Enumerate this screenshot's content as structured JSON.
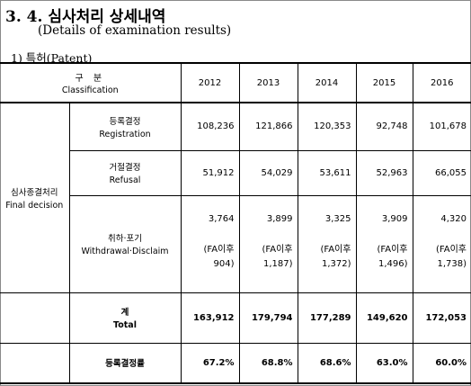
{
  "title": "3. 4. 심사처리 상세내역",
  "subtitle": "(Details of examination results)",
  "section": "1) 특허(Patent)",
  "table": {
    "header_ko": "구 분",
    "header_en": "Classification",
    "years": [
      "2012",
      "2013",
      "2014",
      "2015",
      "2016"
    ],
    "group_ko": "심사종결처리",
    "group_en": "Final decision",
    "registration": {
      "ko": "등록결정",
      "en": "Registration",
      "values": [
        "108,236",
        "121,866",
        "120,353",
        "92,748",
        "101,678"
      ]
    },
    "refusal": {
      "ko": "거절결정",
      "en": "Refusal",
      "values": [
        "51,912",
        "54,029",
        "53,611",
        "52,963",
        "66,055"
      ]
    },
    "withdrawal": {
      "ko": "취하·포기",
      "en": "Withdrawal·Disclaim",
      "values": [
        "3,764",
        "3,899",
        "3,325",
        "3,909",
        "4,320"
      ],
      "fa_prefix": "(FA이후",
      "fa_values": [
        "904)",
        "1,187)",
        "1,372)",
        "1,496)",
        "1,738)"
      ]
    },
    "total": {
      "ko": "계",
      "en": "Total",
      "values": [
        "163,912",
        "179,794",
        "177,289",
        "149,620",
        "172,053"
      ]
    },
    "rate": {
      "ko": "등록결정률",
      "values": [
        "67.2%",
        "68.8%",
        "68.6%",
        "63.0%",
        "60.0%"
      ]
    }
  }
}
